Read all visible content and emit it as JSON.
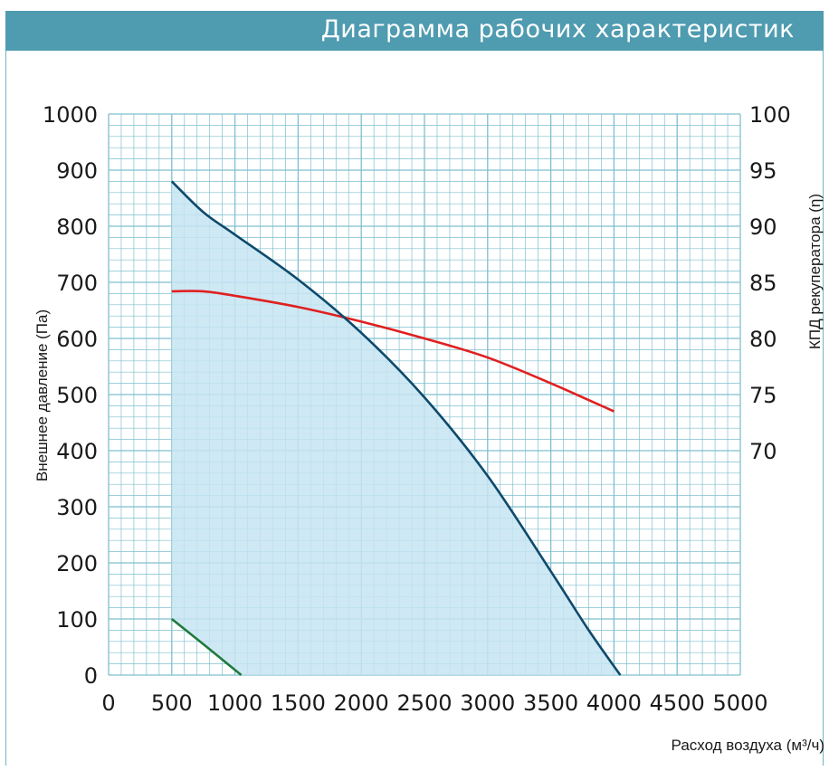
{
  "header": {
    "title": "Диаграмма рабочих характеристик"
  },
  "colors": {
    "header_bg": "#4f9bb0",
    "grid": "#7fbfcf",
    "area_fill": "#c5e4f2",
    "pressure_curve": "#0d4a6b",
    "efficiency_curve": "#e02020",
    "low_curve": "#1f7a3c"
  },
  "chart_data": {
    "type": "line",
    "xlabel": "Расход воздуха (м³/ч)",
    "ylabel": "Внешнее давление (Па)",
    "y2label": "КПД рекуператора (η)",
    "xlim": [
      0,
      5000
    ],
    "ylim": [
      0,
      1000
    ],
    "y2lim": [
      70,
      100
    ],
    "grid": true,
    "x_ticks": [
      "0",
      "500",
      "1000",
      "1500",
      "2000",
      "2500",
      "3000",
      "3500",
      "4000",
      "4500",
      "5000"
    ],
    "y_ticks": [
      "0",
      "100",
      "200",
      "300",
      "400",
      "500",
      "600",
      "700",
      "800",
      "900",
      "1000"
    ],
    "y2_ticks": [
      "70",
      "75",
      "80",
      "85",
      "90",
      "95",
      "100"
    ],
    "series": [
      {
        "key": "pressure",
        "axis": "left",
        "x": [
          500,
          750,
          1000,
          1500,
          2000,
          2500,
          3000,
          3500,
          3800,
          4050
        ],
        "y": [
          880,
          825,
          785,
          705,
          610,
          495,
          355,
          185,
          80,
          0
        ]
      },
      {
        "key": "efficiency",
        "axis": "right",
        "x": [
          500,
          750,
          1000,
          1500,
          2000,
          2500,
          3000,
          3500,
          4000
        ],
        "y": [
          84.2,
          84.2,
          83.8,
          82.8,
          81.5,
          80.0,
          78.3,
          76.0,
          73.5
        ]
      },
      {
        "key": "minimum",
        "axis": "left",
        "x": [
          500,
          750,
          1050
        ],
        "y": [
          100,
          55,
          0
        ]
      }
    ]
  }
}
